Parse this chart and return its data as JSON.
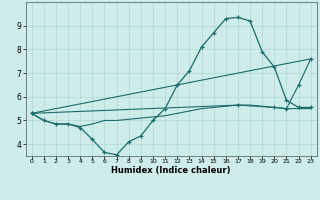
{
  "xlabel": "Humidex (Indice chaleur)",
  "background_color": "#ceecea",
  "grid_color": "#b0d8d4",
  "line_color": "#1a6b6b",
  "xlim": [
    -0.5,
    23.5
  ],
  "ylim": [
    3.5,
    10.0
  ],
  "xticks": [
    0,
    1,
    2,
    3,
    4,
    5,
    6,
    7,
    8,
    9,
    10,
    11,
    12,
    13,
    14,
    15,
    16,
    17,
    18,
    19,
    20,
    21,
    22,
    23
  ],
  "yticks": [
    4,
    5,
    6,
    7,
    8,
    9
  ],
  "line1_x": [
    0,
    1,
    2,
    3,
    4,
    5,
    6,
    7,
    8,
    9,
    10,
    11,
    12,
    13,
    14,
    15,
    16,
    17,
    18,
    19,
    20,
    21,
    22,
    23
  ],
  "line1_y": [
    5.3,
    5.0,
    4.85,
    4.85,
    4.7,
    4.2,
    3.65,
    3.55,
    4.1,
    4.35,
    5.0,
    5.5,
    6.5,
    7.1,
    8.1,
    8.7,
    9.3,
    9.35,
    9.2,
    7.9,
    7.25,
    5.85,
    5.55,
    5.55
  ],
  "line2_x": [
    0,
    1,
    2,
    3,
    4,
    5,
    6,
    7,
    8,
    9,
    10,
    11,
    12,
    13,
    14,
    15,
    16,
    17,
    18,
    19,
    20,
    21,
    22,
    23
  ],
  "line2_y": [
    5.3,
    5.0,
    4.85,
    4.85,
    4.75,
    4.85,
    5.0,
    5.0,
    5.05,
    5.1,
    5.15,
    5.2,
    5.3,
    5.4,
    5.5,
    5.55,
    5.6,
    5.65,
    5.65,
    5.6,
    5.55,
    5.5,
    5.5,
    5.5
  ],
  "line3_x": [
    0,
    23
  ],
  "line3_y": [
    5.3,
    7.6
  ],
  "line4_x": [
    0,
    17,
    20,
    21,
    22,
    23
  ],
  "line4_y": [
    5.3,
    5.65,
    5.55,
    5.5,
    6.5,
    7.6
  ]
}
